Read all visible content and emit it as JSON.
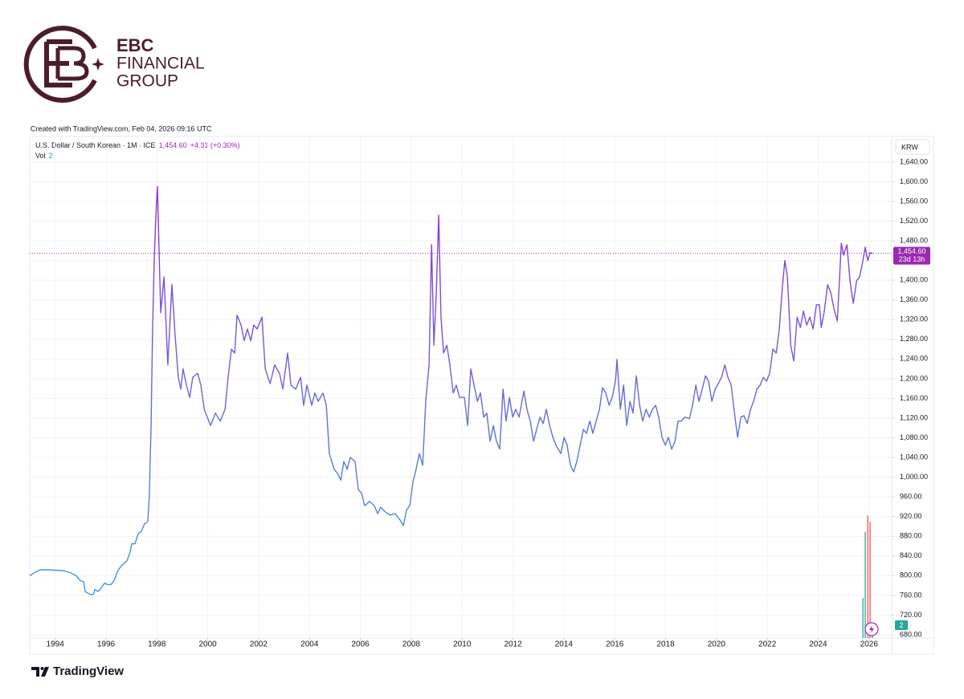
{
  "logo": {
    "lines": [
      "EBC",
      "FINANCIAL",
      "GROUP"
    ]
  },
  "credit": "Created with TradingView.com, Feb 04, 2026 09:16 UTC",
  "watermark": "TradingView",
  "chart_data": {
    "type": "line",
    "currency": "KRW",
    "series": [
      {
        "name": "U.S. Dollar / South Korean · 1M · ICE",
        "colors": [
          "#35a6dc",
          "#6a66d8",
          "#a21fd6"
        ],
        "x": [
          1993.0,
          1993.25,
          1993.41,
          1993.73,
          1994.04,
          1994.36,
          1994.61,
          1994.83,
          1994.99,
          1995.12,
          1995.18,
          1995.37,
          1995.5,
          1995.56,
          1995.69,
          1995.81,
          1995.94,
          1996.06,
          1996.19,
          1996.32,
          1996.44,
          1996.57,
          1996.7,
          1996.82,
          1996.95,
          1997.01,
          1997.14,
          1997.26,
          1997.39,
          1997.51,
          1997.64,
          1997.7,
          1997.77,
          1997.83,
          1997.9,
          1997.96,
          1998.02,
          1998.15,
          1998.28,
          1998.43,
          1998.59,
          1998.72,
          1998.84,
          1998.94,
          1999.03,
          1999.16,
          1999.29,
          1999.41,
          1999.6,
          1999.73,
          1999.86,
          1999.98,
          2000.11,
          2000.3,
          2000.49,
          2000.68,
          2000.8,
          2000.93,
          2001.06,
          2001.15,
          2001.31,
          2001.43,
          2001.56,
          2001.69,
          2001.81,
          2001.94,
          2002.13,
          2002.26,
          2002.45,
          2002.63,
          2002.82,
          2002.95,
          2003.14,
          2003.27,
          2003.46,
          2003.65,
          2003.77,
          2003.9,
          2004.09,
          2004.21,
          2004.34,
          2004.53,
          2004.66,
          2004.78,
          2004.97,
          2005.1,
          2005.23,
          2005.35,
          2005.48,
          2005.6,
          2005.79,
          2005.92,
          2006.05,
          2006.17,
          2006.36,
          2006.55,
          2006.68,
          2006.8,
          2006.99,
          2007.18,
          2007.37,
          2007.56,
          2007.69,
          2007.82,
          2007.94,
          2008.07,
          2008.19,
          2008.32,
          2008.45,
          2008.57,
          2008.7,
          2008.8,
          2008.89,
          2008.98,
          2009.08,
          2009.17,
          2009.27,
          2009.4,
          2009.52,
          2009.65,
          2009.77,
          2009.9,
          2010.09,
          2010.22,
          2010.34,
          2010.47,
          2010.6,
          2010.72,
          2010.85,
          2010.97,
          2011.1,
          2011.23,
          2011.35,
          2011.48,
          2011.61,
          2011.73,
          2011.86,
          2011.99,
          2012.11,
          2012.24,
          2012.43,
          2012.55,
          2012.68,
          2012.81,
          2012.93,
          2013.06,
          2013.19,
          2013.31,
          2013.44,
          2013.57,
          2013.69,
          2013.88,
          2014.01,
          2014.13,
          2014.26,
          2014.39,
          2014.51,
          2014.64,
          2014.77,
          2014.89,
          2015.02,
          2015.14,
          2015.27,
          2015.4,
          2015.52,
          2015.65,
          2015.78,
          2015.9,
          2016.03,
          2016.09,
          2016.22,
          2016.35,
          2016.47,
          2016.6,
          2016.72,
          2016.85,
          2016.98,
          2017.1,
          2017.23,
          2017.36,
          2017.48,
          2017.61,
          2017.73,
          2017.86,
          2017.99,
          2018.11,
          2018.24,
          2018.37,
          2018.49,
          2018.62,
          2018.75,
          2018.94,
          2019.06,
          2019.19,
          2019.31,
          2019.44,
          2019.57,
          2019.69,
          2019.82,
          2019.95,
          2020.07,
          2020.2,
          2020.33,
          2020.45,
          2020.58,
          2020.71,
          2020.83,
          2020.96,
          2021.08,
          2021.21,
          2021.34,
          2021.46,
          2021.59,
          2021.72,
          2021.84,
          2021.97,
          2022.09,
          2022.22,
          2022.35,
          2022.47,
          2022.6,
          2022.69,
          2022.79,
          2022.92,
          2023.04,
          2023.17,
          2023.3,
          2023.42,
          2023.55,
          2023.67,
          2023.8,
          2023.93,
          2024.05,
          2024.12,
          2024.24,
          2024.37,
          2024.5,
          2024.62,
          2024.75,
          2024.81,
          2024.91,
          2025.0,
          2025.13,
          2025.25,
          2025.38,
          2025.51,
          2025.63,
          2025.76,
          2025.85,
          2025.95,
          2026.04,
          2026.14
        ],
        "values": [
          800,
          808,
          812,
          812,
          811,
          810,
          806,
          800,
          790,
          788,
          768,
          762,
          762,
          772,
          768,
          775,
          785,
          782,
          782,
          790,
          808,
          818,
          825,
          830,
          848,
          865,
          865,
          885,
          890,
          905,
          910,
          960,
          1100,
          1300,
          1450,
          1530,
          1590,
          1334,
          1407,
          1228,
          1391,
          1285,
          1203,
          1179,
          1220,
          1187,
          1162,
          1203,
          1211,
          1187,
          1138,
          1122,
          1105,
          1130,
          1114,
          1138,
          1203,
          1260,
          1252,
          1329,
          1309,
          1277,
          1301,
          1277,
          1309,
          1301,
          1325,
          1220,
          1190,
          1228,
          1211,
          1179,
          1252,
          1187,
          1179,
          1203,
          1146,
          1187,
          1146,
          1171,
          1154,
          1171,
          1146,
          1048,
          1016,
          1008,
          994,
          1032,
          1016,
          1040,
          1032,
          975,
          967,
          942,
          951,
          942,
          926,
          939,
          929,
          923,
          926,
          913,
          902,
          934,
          942,
          991,
          1016,
          1048,
          1024,
          1154,
          1228,
          1472,
          1268,
          1366,
          1532,
          1325,
          1252,
          1268,
          1228,
          1171,
          1187,
          1162,
          1162,
          1105,
          1220,
          1187,
          1154,
          1171,
          1122,
          1130,
          1073,
          1105,
          1073,
          1057,
          1179,
          1114,
          1162,
          1122,
          1138,
          1122,
          1175,
          1138,
          1114,
          1073,
          1097,
          1122,
          1109,
          1138,
          1105,
          1081,
          1065,
          1048,
          1081,
          1065,
          1024,
          1011,
          1032,
          1065,
          1097,
          1089,
          1114,
          1089,
          1114,
          1138,
          1182,
          1171,
          1146,
          1162,
          1195,
          1239,
          1138,
          1187,
          1105,
          1154,
          1130,
          1206,
          1146,
          1114,
          1138,
          1122,
          1138,
          1146,
          1122,
          1081,
          1065,
          1081,
          1057,
          1073,
          1114,
          1114,
          1122,
          1119,
          1146,
          1187,
          1154,
          1179,
          1206,
          1195,
          1154,
          1179,
          1190,
          1203,
          1228,
          1203,
          1187,
          1130,
          1081,
          1122,
          1125,
          1109,
          1138,
          1154,
          1179,
          1187,
          1203,
          1195,
          1211,
          1260,
          1252,
          1301,
          1391,
          1440,
          1407,
          1268,
          1236,
          1325,
          1304,
          1337,
          1309,
          1325,
          1301,
          1350,
          1350,
          1304,
          1337,
          1391,
          1374,
          1342,
          1317,
          1374,
          1475,
          1451,
          1472,
          1399,
          1353,
          1399,
          1407,
          1440,
          1467,
          1440,
          1456,
          1454.6
        ]
      }
    ],
    "last_price": {
      "value": 1454.6,
      "label": "1,454.60",
      "change": "+4.31 (+0.30%)",
      "countdown": "23d 13h",
      "color": "#9c27b0"
    },
    "volume": {
      "label": "Vol",
      "x": [
        2025.76,
        2025.85,
        2025.95,
        2026.04,
        2026.14
      ],
      "values": [
        40,
        106,
        122,
        116,
        2
      ],
      "colors": [
        "#26a69a",
        "#26a69a",
        "#ef5350",
        "#ef5350",
        "#26a69a"
      ],
      "vlim": [
        0,
        500
      ]
    },
    "xlim": [
      1993.0,
      2026.89
    ],
    "ylim": [
      673.5,
      1692
    ],
    "xticks": [
      1994,
      1996,
      1998,
      2000,
      2002,
      2004,
      2006,
      2008,
      2010,
      2012,
      2014,
      2016,
      2018,
      2020,
      2022,
      2024,
      2026
    ],
    "yticks": [
      {
        "value": 680,
        "label": "680.00"
      },
      {
        "value": 720,
        "label": "720.00"
      },
      {
        "value": 760,
        "label": "760.00"
      },
      {
        "value": 800,
        "label": "800.00"
      },
      {
        "value": 840,
        "label": "840.00"
      },
      {
        "value": 880,
        "label": "880.00"
      },
      {
        "value": 920,
        "label": "920.00"
      },
      {
        "value": 960,
        "label": "960.00"
      },
      {
        "value": 1000,
        "label": "1,000.00"
      },
      {
        "value": 1040,
        "label": "1,040.00"
      },
      {
        "value": 1080,
        "label": "1,080.00"
      },
      {
        "value": 1120,
        "label": "1,120.00"
      },
      {
        "value": 1160,
        "label": "1,160.00"
      },
      {
        "value": 1200,
        "label": "1,200.00"
      },
      {
        "value": 1240,
        "label": "1,240.00"
      },
      {
        "value": 1280,
        "label": "1,280.00"
      },
      {
        "value": 1320,
        "label": "1,320.00"
      },
      {
        "value": 1360,
        "label": "1,360.00"
      },
      {
        "value": 1400,
        "label": "1,400.00"
      },
      {
        "value": 1440,
        "label": "1,440.00"
      },
      {
        "value": 1480,
        "label": "1,480.00"
      },
      {
        "value": 1520,
        "label": "1,520.00"
      },
      {
        "value": 1560,
        "label": "1,560.00"
      },
      {
        "value": 1600,
        "label": "1,600.00"
      },
      {
        "value": 1640,
        "label": "1,640.00"
      }
    ],
    "grid": true
  }
}
